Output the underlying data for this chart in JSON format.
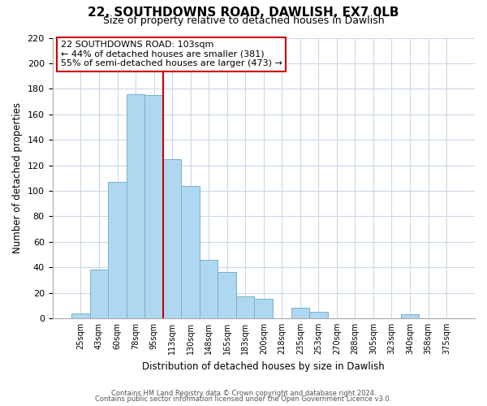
{
  "title": "22, SOUTHDOWNS ROAD, DAWLISH, EX7 0LB",
  "subtitle": "Size of property relative to detached houses in Dawlish",
  "xlabel": "Distribution of detached houses by size in Dawlish",
  "ylabel": "Number of detached properties",
  "bar_color": "#add8f0",
  "bar_edge_color": "#7ab0cc",
  "categories": [
    "25sqm",
    "43sqm",
    "60sqm",
    "78sqm",
    "95sqm",
    "113sqm",
    "130sqm",
    "148sqm",
    "165sqm",
    "183sqm",
    "200sqm",
    "218sqm",
    "235sqm",
    "253sqm",
    "270sqm",
    "288sqm",
    "305sqm",
    "323sqm",
    "340sqm",
    "358sqm",
    "375sqm"
  ],
  "values": [
    4,
    38,
    107,
    176,
    175,
    125,
    104,
    46,
    36,
    17,
    15,
    0,
    8,
    5,
    0,
    0,
    0,
    0,
    3,
    0,
    0
  ],
  "ylim": [
    0,
    220
  ],
  "yticks": [
    0,
    20,
    40,
    60,
    80,
    100,
    120,
    140,
    160,
    180,
    200,
    220
  ],
  "vline_color": "#cc0000",
  "vline_index": 4.5,
  "annotation_title": "22 SOUTHDOWNS ROAD: 103sqm",
  "annotation_line1": "← 44% of detached houses are smaller (381)",
  "annotation_line2": "55% of semi-detached houses are larger (473) →",
  "annotation_box_color": "#ffffff",
  "annotation_box_edge": "#cc0000",
  "footer_line1": "Contains HM Land Registry data © Crown copyright and database right 2024.",
  "footer_line2": "Contains public sector information licensed under the Open Government Licence v3.0.",
  "bg_color": "#ffffff",
  "grid_color": "#ccd8e8",
  "title_fontsize": 11,
  "subtitle_fontsize": 9
}
